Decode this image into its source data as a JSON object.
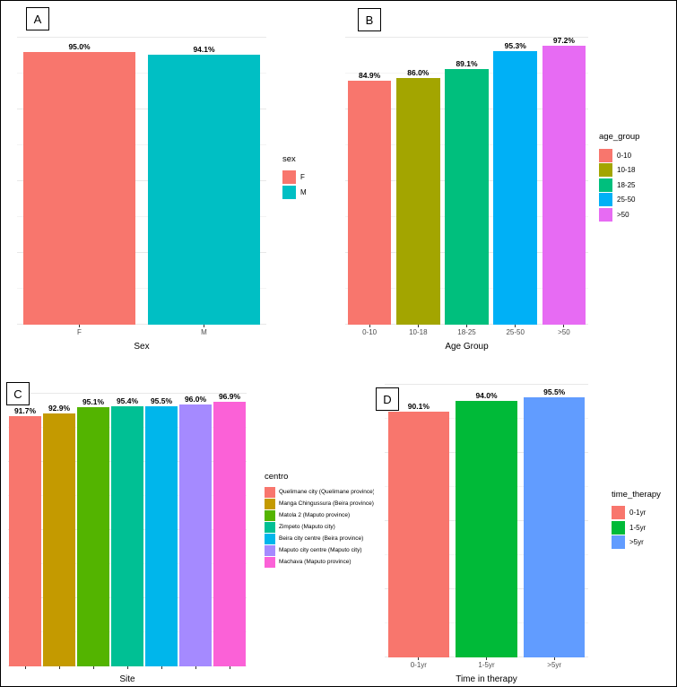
{
  "figure": {
    "background": "#ffffff",
    "border_color": "#000000"
  },
  "chart_data": [
    {
      "panel": "A",
      "type": "bar",
      "xlabel": "Sex",
      "ylabel": "",
      "ylim": [
        0,
        100
      ],
      "grid": "horizontal",
      "legend_position": "right",
      "legend_title": "sex",
      "categories": [
        "F",
        "M"
      ],
      "values": [
        95.0,
        94.1
      ],
      "bar_labels": [
        "95.0%",
        "94.1%"
      ],
      "colors": [
        "#F8766D",
        "#00BFC4"
      ],
      "show_x_tick_labels": true,
      "legend": [
        {
          "label": "F",
          "color": "#F8766D"
        },
        {
          "label": "M",
          "color": "#00BFC4"
        }
      ]
    },
    {
      "panel": "B",
      "type": "bar",
      "xlabel": "Age Group",
      "ylabel": "",
      "ylim": [
        0,
        100
      ],
      "grid": "horizontal",
      "legend_position": "right",
      "legend_title": "age_group",
      "categories": [
        "0-10",
        "10-18",
        "18-25",
        "25-50",
        ">50"
      ],
      "values": [
        84.9,
        86.0,
        89.1,
        95.3,
        97.2
      ],
      "bar_labels": [
        "84.9%",
        "86.0%",
        "89.1%",
        "95.3%",
        "97.2%"
      ],
      "colors": [
        "#F8766D",
        "#A3A500",
        "#00BF7D",
        "#00B0F6",
        "#E76BF3"
      ],
      "show_x_tick_labels": true,
      "legend": [
        {
          "label": "0-10",
          "color": "#F8766D"
        },
        {
          "label": "10-18",
          "color": "#A3A500"
        },
        {
          "label": "18-25",
          "color": "#00BF7D"
        },
        {
          "label": "25-50",
          "color": "#00B0F6"
        },
        {
          "label": ">50",
          "color": "#E76BF3"
        }
      ]
    },
    {
      "panel": "C",
      "type": "bar",
      "xlabel": "Site",
      "ylabel": "",
      "ylim": [
        0,
        100
      ],
      "grid": "horizontal",
      "legend_position": "right",
      "legend_title": "centro",
      "categories": [
        "Quelimane city (Quelimane province)",
        "Manga Chingussura (Beira province)",
        "Matola 2 (Maputo province)",
        "Zimpeto (Maputo city)",
        "Beira city centre (Beira province)",
        "Maputo city centre (Maputo city)",
        "Machava (Maputo province)"
      ],
      "values": [
        91.7,
        92.9,
        95.1,
        95.4,
        95.5,
        96.0,
        96.9
      ],
      "bar_labels": [
        "91.7%",
        "92.9%",
        "95.1%",
        "95.4%",
        "95.5%",
        "96.0%",
        "96.9%"
      ],
      "colors": [
        "#F8766D",
        "#C49A00",
        "#53B400",
        "#00C094",
        "#00B6EB",
        "#A58AFF",
        "#FB61D7"
      ],
      "show_x_tick_labels": false,
      "legend": [
        {
          "label": "Quelimane city (Quelimane province)",
          "color": "#F8766D"
        },
        {
          "label": "Manga Chingussura (Beira province)",
          "color": "#C49A00"
        },
        {
          "label": "Matola 2 (Maputo province)",
          "color": "#53B400"
        },
        {
          "label": "Zimpeto (Maputo city)",
          "color": "#00C094"
        },
        {
          "label": "Beira city centre (Beira province)",
          "color": "#00B6EB"
        },
        {
          "label": "Maputo city centre (Maputo city)",
          "color": "#A58AFF"
        },
        {
          "label": "Machava (Maputo province)",
          "color": "#FB61D7"
        }
      ]
    },
    {
      "panel": "D",
      "type": "bar",
      "xlabel": "Time in therapy",
      "ylabel": "",
      "ylim": [
        0,
        100
      ],
      "grid": "horizontal",
      "legend_position": "right",
      "legend_title": "time_therapy",
      "categories": [
        "0-1yr",
        "1-5yr",
        ">5yr"
      ],
      "values": [
        90.1,
        94.0,
        95.5
      ],
      "bar_labels": [
        "90.1%",
        "94.0%",
        "95.5%"
      ],
      "colors": [
        "#F8766D",
        "#00BA38",
        "#619CFF"
      ],
      "show_x_tick_labels": true,
      "legend": [
        {
          "label": "0-1yr",
          "color": "#F8766D"
        },
        {
          "label": "1-5yr",
          "color": "#00BA38"
        },
        {
          "label": ">5yr",
          "color": "#619CFF"
        }
      ]
    }
  ]
}
